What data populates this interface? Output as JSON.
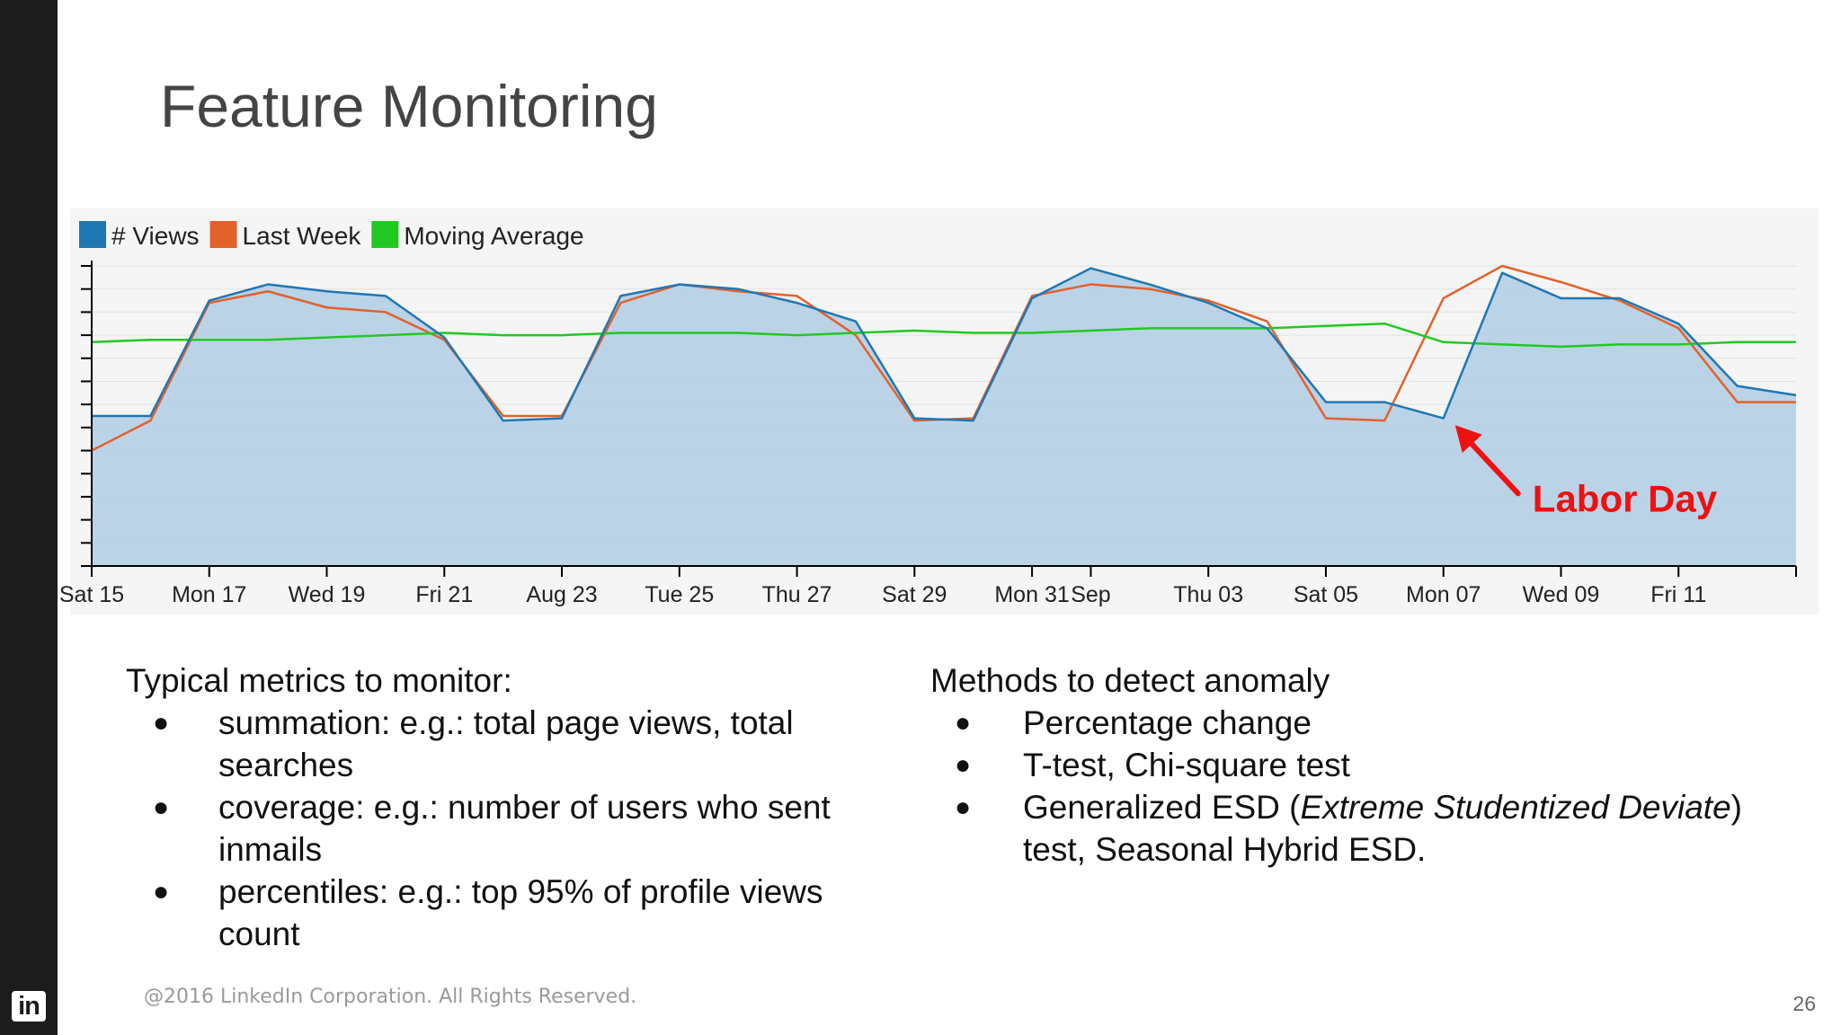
{
  "slide": {
    "title": "Feature Monitoring",
    "footer": "@2016 LinkedIn Corporation. All Rights Reserved.",
    "page_number": "26",
    "logo_text": "in"
  },
  "left_column": {
    "heading": "Typical metrics to monitor:",
    "bullets": [
      "summation: e.g.: total page views, total searches",
      "coverage: e.g.: number of users who sent inmails",
      "percentiles: e.g.: top 95% of profile views count"
    ]
  },
  "right_column": {
    "heading": "Methods to detect anomaly",
    "bullets": [
      "Percentage change",
      "T-test, Chi-square test"
    ],
    "bullet3": {
      "prefix": "Generalized ESD (",
      "italic": "Extreme Studentized Deviate",
      "suffix": ") test, Seasonal Hybrid ESD."
    }
  },
  "colors": {
    "views": "#1f77b4",
    "last_week": "#e2622b",
    "moving_average": "#22c822",
    "annotation": "#ee1111",
    "area_fill": "#b5cfe6"
  },
  "chart_data": {
    "type": "area",
    "x_tick_labels": [
      "Sat 15",
      "Mon 17",
      "Wed 19",
      "Fri 21",
      "Aug 23",
      "Tue 25",
      "Thu 27",
      "Sat 29",
      "Mon 31",
      "Sep",
      "Thu 03",
      "Sat 05",
      "Mon 07",
      "Wed 09",
      "Fri 11"
    ],
    "x_tick_days": [
      0,
      2,
      4,
      6,
      8,
      10,
      12,
      14,
      16,
      17,
      19,
      21,
      23,
      25,
      27
    ],
    "xlim": [
      0,
      29
    ],
    "ylim": [
      0,
      13
    ],
    "y_tick_count": 14,
    "y_tick_labels_shown": false,
    "legend_position": "top-left",
    "series": [
      {
        "name": "# Views",
        "x": [
          0,
          1,
          2,
          3,
          4,
          5,
          6,
          7,
          8,
          9,
          10,
          11,
          12,
          13,
          14,
          15,
          16,
          17,
          18,
          19,
          20,
          21,
          22,
          23,
          24,
          25,
          26,
          27,
          28,
          29
        ],
        "values": [
          6.5,
          6.5,
          11.5,
          12.2,
          11.9,
          11.7,
          9.9,
          6.3,
          6.4,
          11.7,
          12.2,
          12.0,
          11.4,
          10.6,
          6.4,
          6.3,
          11.6,
          12.9,
          12.2,
          11.4,
          10.3,
          7.1,
          7.1,
          6.4,
          12.7,
          11.6,
          11.6,
          10.5,
          7.8,
          7.4
        ],
        "filled": true
      },
      {
        "name": "Last Week",
        "x": [
          0,
          1,
          2,
          3,
          4,
          5,
          6,
          7,
          8,
          9,
          10,
          11,
          12,
          13,
          14,
          15,
          16,
          17,
          18,
          19,
          20,
          21,
          22,
          23,
          24,
          25,
          26,
          27,
          28,
          29
        ],
        "values": [
          5.0,
          6.3,
          11.4,
          11.9,
          11.2,
          11.0,
          9.8,
          6.5,
          6.5,
          11.4,
          12.2,
          11.9,
          11.7,
          10.0,
          6.3,
          6.4,
          11.7,
          12.2,
          12.0,
          11.5,
          10.6,
          6.4,
          6.3,
          11.6,
          13.0,
          12.3,
          11.5,
          10.3,
          7.1,
          7.1
        ]
      },
      {
        "name": "Moving Average",
        "x": [
          0,
          1,
          2,
          3,
          4,
          5,
          6,
          7,
          8,
          9,
          10,
          11,
          12,
          13,
          14,
          15,
          16,
          17,
          18,
          19,
          20,
          21,
          22,
          23,
          24,
          25,
          26,
          27,
          28,
          29
        ],
        "values": [
          9.7,
          9.8,
          9.8,
          9.8,
          9.9,
          10.0,
          10.1,
          10.0,
          10.0,
          10.1,
          10.1,
          10.1,
          10.0,
          10.1,
          10.2,
          10.1,
          10.1,
          10.2,
          10.3,
          10.3,
          10.3,
          10.4,
          10.5,
          9.7,
          9.6,
          9.5,
          9.6,
          9.6,
          9.7,
          9.7
        ]
      }
    ],
    "annotation": {
      "text": "Labor Day",
      "x": 23.2,
      "y": 6.1
    }
  }
}
